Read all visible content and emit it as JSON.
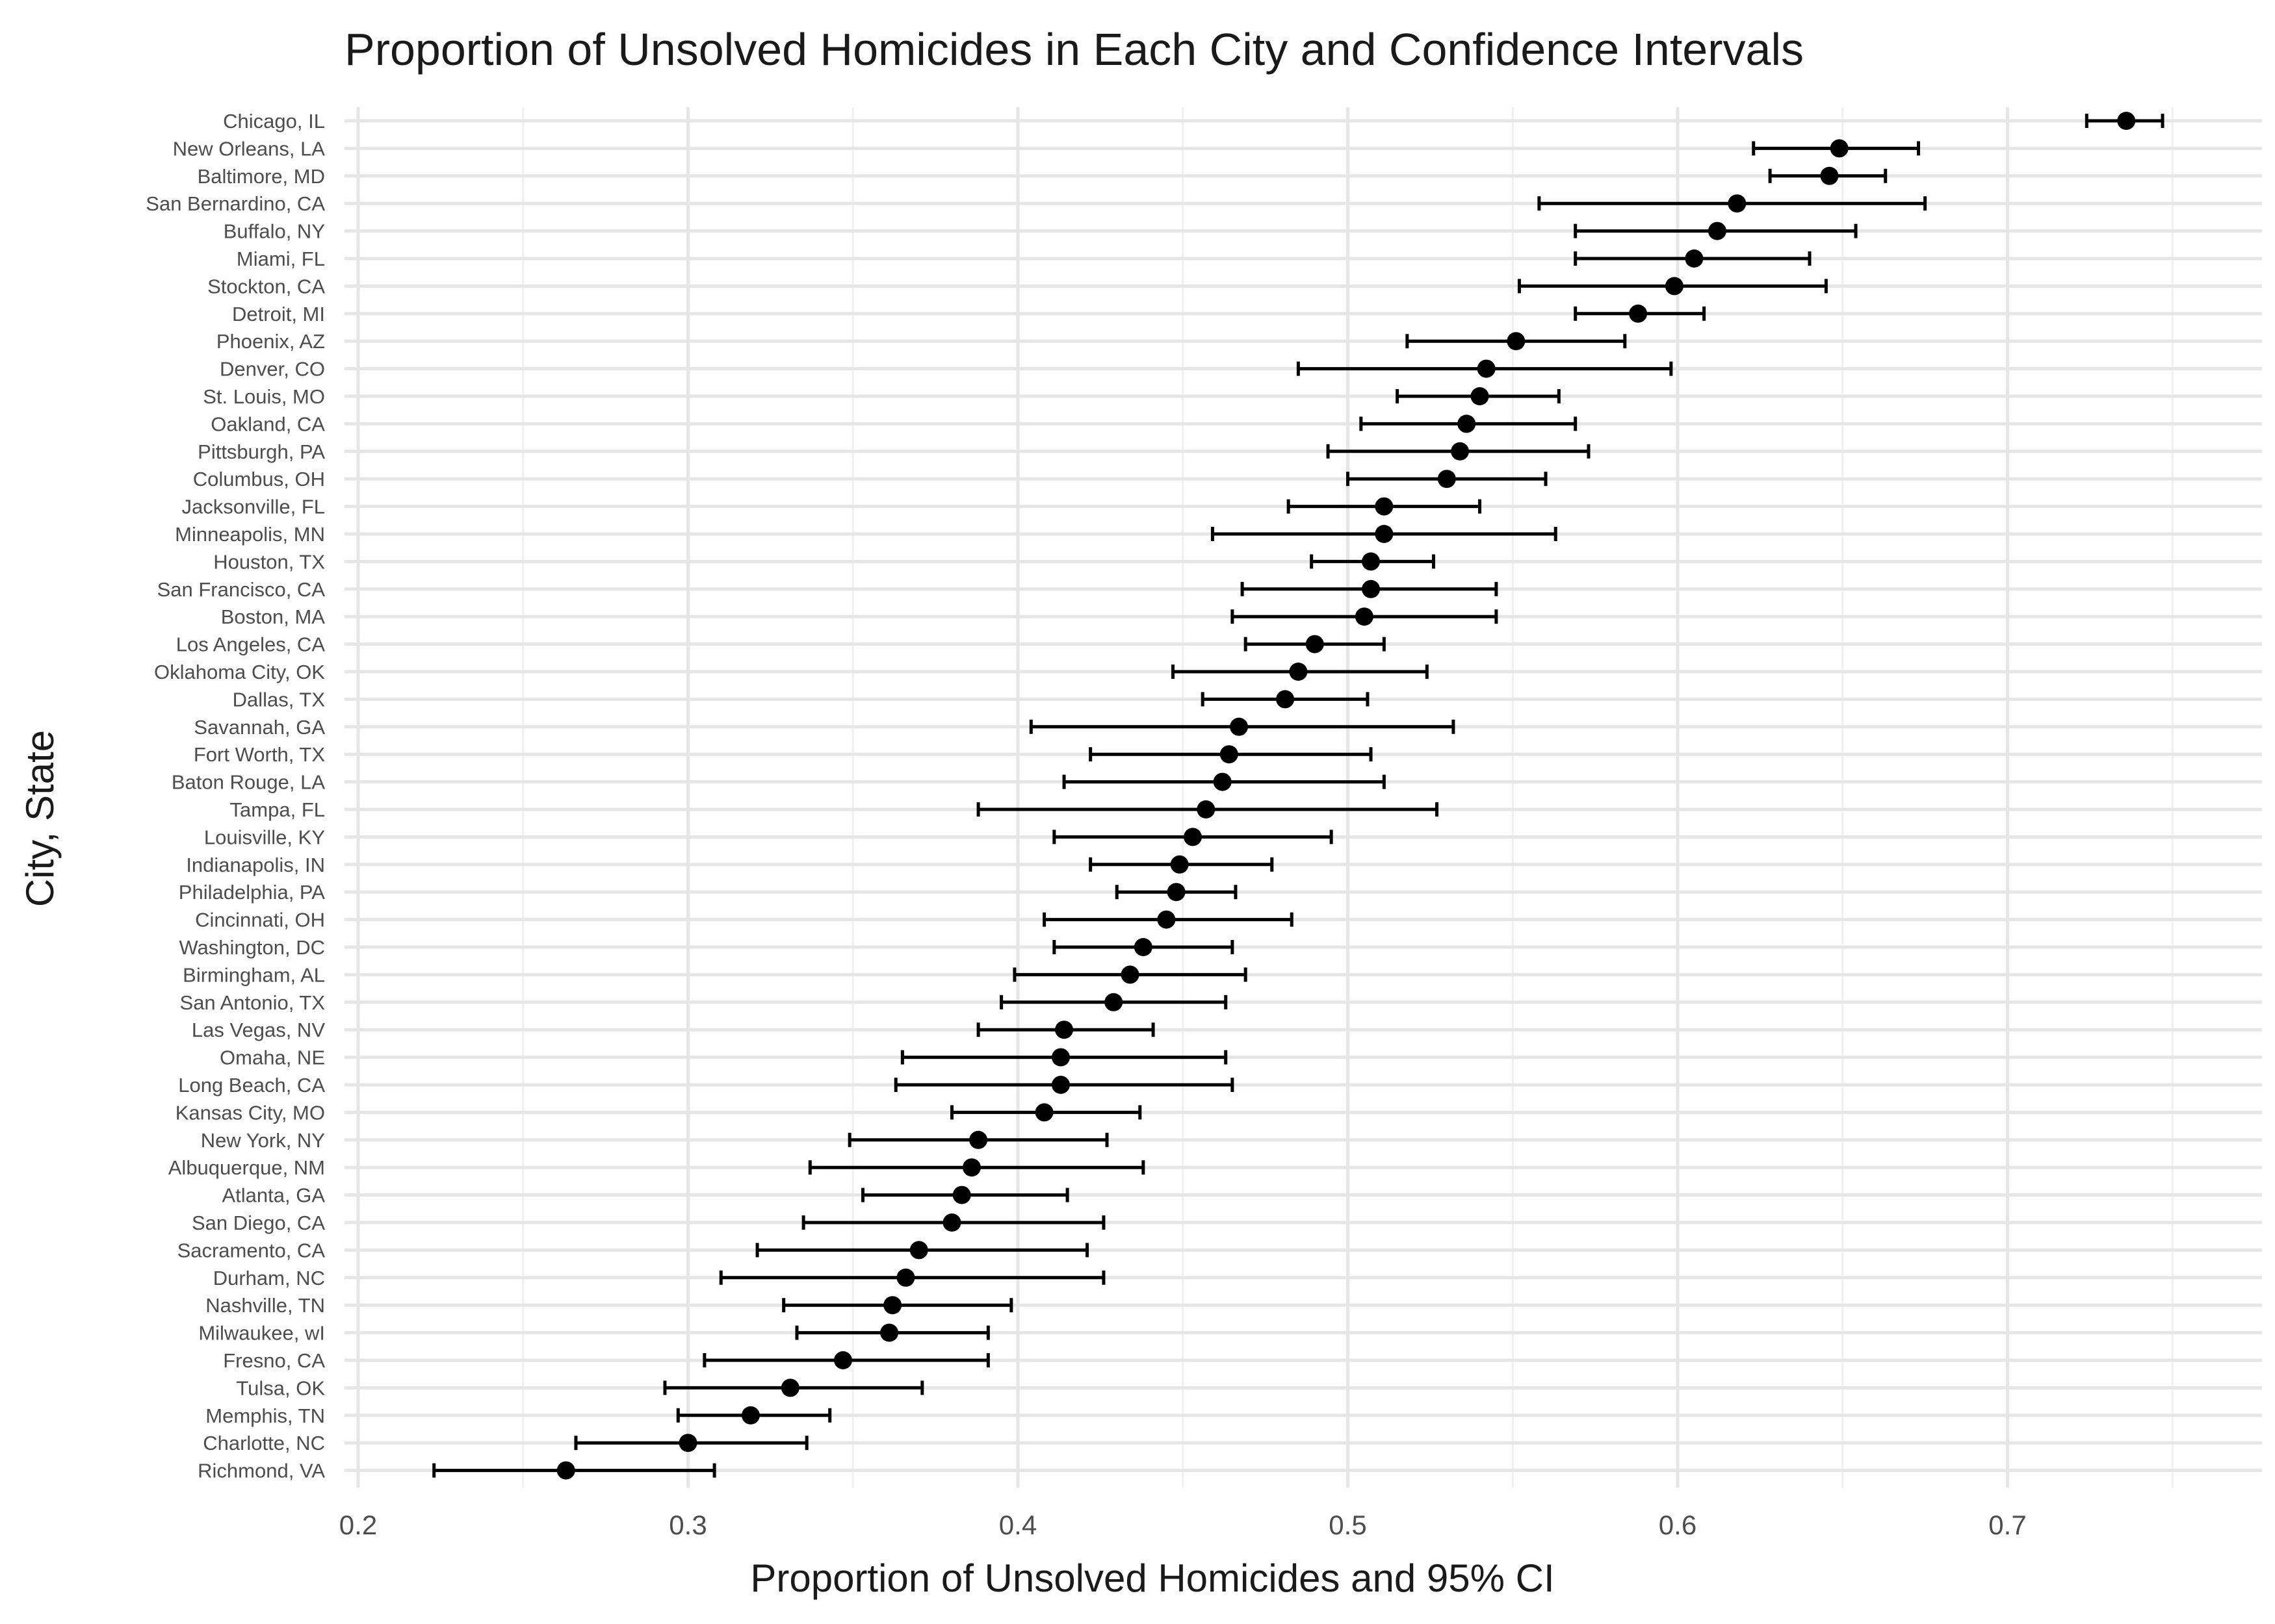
{
  "chart_data": {
    "type": "scatter",
    "title": "Proportion of Unsolved Homicides in Each City and Confidence Intervals",
    "xlabel": "Proportion of Unsolved Homicides and 95% CI",
    "ylabel": "City, State",
    "xlim": [
      0.19,
      0.775
    ],
    "xticks": [
      0.2,
      0.3,
      0.4,
      0.5,
      0.6,
      0.7
    ],
    "xtick_labels": [
      "0.2",
      "0.3",
      "0.4",
      "0.5",
      "0.6",
      "0.7"
    ],
    "grid": true,
    "legend": "none",
    "point_color": "#000000",
    "cities": [
      {
        "city": "Chicago, IL",
        "estimate": 0.736,
        "lower": 0.724,
        "upper": 0.747
      },
      {
        "city": "New Orleans, LA",
        "estimate": 0.649,
        "lower": 0.623,
        "upper": 0.673
      },
      {
        "city": "Baltimore, MD",
        "estimate": 0.646,
        "lower": 0.628,
        "upper": 0.663
      },
      {
        "city": "San Bernardino, CA",
        "estimate": 0.618,
        "lower": 0.558,
        "upper": 0.675
      },
      {
        "city": "Buffalo, NY",
        "estimate": 0.612,
        "lower": 0.569,
        "upper": 0.654
      },
      {
        "city": "Miami, FL",
        "estimate": 0.605,
        "lower": 0.569,
        "upper": 0.64
      },
      {
        "city": "Stockton, CA",
        "estimate": 0.599,
        "lower": 0.552,
        "upper": 0.645
      },
      {
        "city": "Detroit, MI",
        "estimate": 0.588,
        "lower": 0.569,
        "upper": 0.608
      },
      {
        "city": "Phoenix, AZ",
        "estimate": 0.551,
        "lower": 0.518,
        "upper": 0.584
      },
      {
        "city": "Denver, CO",
        "estimate": 0.542,
        "lower": 0.485,
        "upper": 0.598
      },
      {
        "city": "St. Louis, MO",
        "estimate": 0.54,
        "lower": 0.515,
        "upper": 0.564
      },
      {
        "city": "Oakland, CA",
        "estimate": 0.536,
        "lower": 0.504,
        "upper": 0.569
      },
      {
        "city": "Pittsburgh, PA",
        "estimate": 0.534,
        "lower": 0.494,
        "upper": 0.573
      },
      {
        "city": "Columbus, OH",
        "estimate": 0.53,
        "lower": 0.5,
        "upper": 0.56
      },
      {
        "city": "Jacksonville, FL",
        "estimate": 0.511,
        "lower": 0.482,
        "upper": 0.54
      },
      {
        "city": "Minneapolis, MN",
        "estimate": 0.511,
        "lower": 0.459,
        "upper": 0.563
      },
      {
        "city": "Houston, TX",
        "estimate": 0.507,
        "lower": 0.489,
        "upper": 0.526
      },
      {
        "city": "San Francisco, CA",
        "estimate": 0.507,
        "lower": 0.468,
        "upper": 0.545
      },
      {
        "city": "Boston, MA",
        "estimate": 0.505,
        "lower": 0.465,
        "upper": 0.545
      },
      {
        "city": "Los Angeles, CA",
        "estimate": 0.49,
        "lower": 0.469,
        "upper": 0.511
      },
      {
        "city": "Oklahoma City, OK",
        "estimate": 0.485,
        "lower": 0.447,
        "upper": 0.524
      },
      {
        "city": "Dallas, TX",
        "estimate": 0.481,
        "lower": 0.456,
        "upper": 0.506
      },
      {
        "city": "Savannah, GA",
        "estimate": 0.467,
        "lower": 0.404,
        "upper": 0.532
      },
      {
        "city": "Fort Worth, TX",
        "estimate": 0.464,
        "lower": 0.422,
        "upper": 0.507
      },
      {
        "city": "Baton Rouge, LA",
        "estimate": 0.462,
        "lower": 0.414,
        "upper": 0.511
      },
      {
        "city": "Tampa, FL",
        "estimate": 0.457,
        "lower": 0.388,
        "upper": 0.527
      },
      {
        "city": "Louisville, KY",
        "estimate": 0.453,
        "lower": 0.411,
        "upper": 0.495
      },
      {
        "city": "Indianapolis, IN",
        "estimate": 0.449,
        "lower": 0.422,
        "upper": 0.477
      },
      {
        "city": "Philadelphia, PA",
        "estimate": 0.448,
        "lower": 0.43,
        "upper": 0.466
      },
      {
        "city": "Cincinnati, OH",
        "estimate": 0.445,
        "lower": 0.408,
        "upper": 0.483
      },
      {
        "city": "Washington, DC",
        "estimate": 0.438,
        "lower": 0.411,
        "upper": 0.465
      },
      {
        "city": "Birmingham, AL",
        "estimate": 0.434,
        "lower": 0.399,
        "upper": 0.469
      },
      {
        "city": "San Antonio, TX",
        "estimate": 0.429,
        "lower": 0.395,
        "upper": 0.463
      },
      {
        "city": "Las Vegas, NV",
        "estimate": 0.414,
        "lower": 0.388,
        "upper": 0.441
      },
      {
        "city": "Omaha, NE",
        "estimate": 0.413,
        "lower": 0.365,
        "upper": 0.463
      },
      {
        "city": "Long Beach, CA",
        "estimate": 0.413,
        "lower": 0.363,
        "upper": 0.465
      },
      {
        "city": "Kansas City, MO",
        "estimate": 0.408,
        "lower": 0.38,
        "upper": 0.437
      },
      {
        "city": "New York, NY",
        "estimate": 0.388,
        "lower": 0.349,
        "upper": 0.427
      },
      {
        "city": "Albuquerque, NM",
        "estimate": 0.386,
        "lower": 0.337,
        "upper": 0.438
      },
      {
        "city": "Atlanta, GA",
        "estimate": 0.383,
        "lower": 0.353,
        "upper": 0.415
      },
      {
        "city": "San Diego, CA",
        "estimate": 0.38,
        "lower": 0.335,
        "upper": 0.426
      },
      {
        "city": "Sacramento, CA",
        "estimate": 0.37,
        "lower": 0.321,
        "upper": 0.421
      },
      {
        "city": "Durham, NC",
        "estimate": 0.366,
        "lower": 0.31,
        "upper": 0.426
      },
      {
        "city": "Nashville, TN",
        "estimate": 0.362,
        "lower": 0.329,
        "upper": 0.398
      },
      {
        "city": "Milwaukee, wI",
        "estimate": 0.361,
        "lower": 0.333,
        "upper": 0.391
      },
      {
        "city": "Fresno, CA",
        "estimate": 0.347,
        "lower": 0.305,
        "upper": 0.391
      },
      {
        "city": "Tulsa, OK",
        "estimate": 0.331,
        "lower": 0.293,
        "upper": 0.371
      },
      {
        "city": "Memphis, TN",
        "estimate": 0.319,
        "lower": 0.297,
        "upper": 0.343
      },
      {
        "city": "Charlotte, NC",
        "estimate": 0.3,
        "lower": 0.266,
        "upper": 0.336
      },
      {
        "city": "Richmond, VA",
        "estimate": 0.263,
        "lower": 0.223,
        "upper": 0.308
      }
    ]
  }
}
